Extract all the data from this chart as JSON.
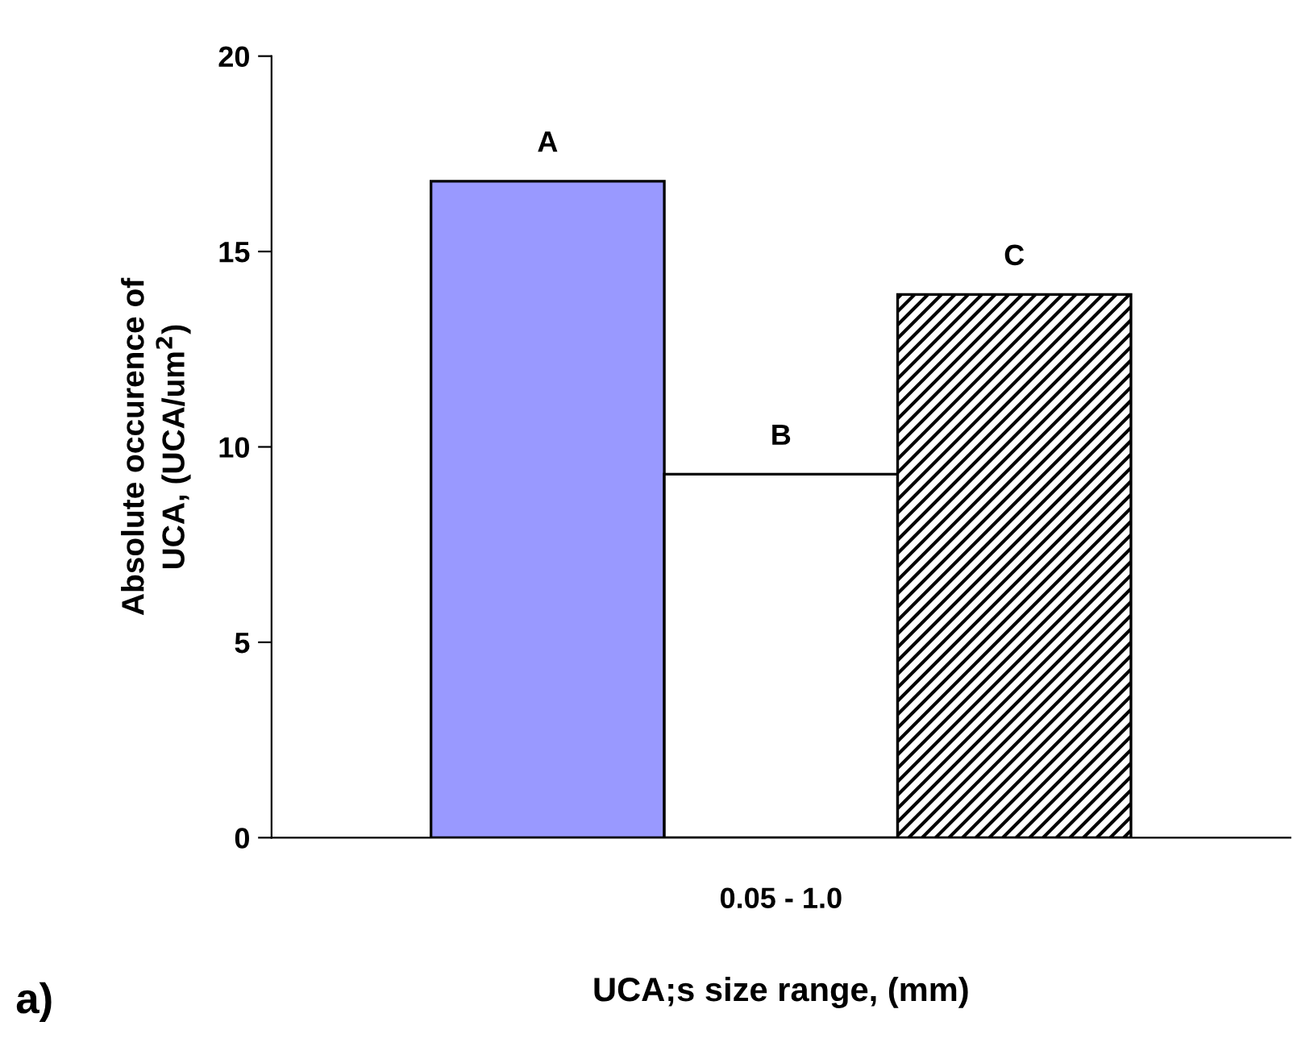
{
  "chart_data": {
    "type": "bar",
    "categories": [
      "0.05 - 1.0"
    ],
    "series": [
      {
        "name": "A",
        "color": "#9999ff",
        "values": [
          16.8
        ]
      },
      {
        "name": "B",
        "color": "#ffffff",
        "values": [
          9.3
        ]
      },
      {
        "name": "C",
        "color": "#000000",
        "values": [
          13.9
        ]
      }
    ],
    "xlabel": "UCA;s size range, (mm)",
    "ylabel": "Absolute occurence of\nUCA, (UCA/um$^{2}$)",
    "annotations": [
      "a)"
    ],
    "ylim": [
      0,
      20
    ],
    "yticks": [
      0,
      5,
      10,
      15,
      20
    ],
    "grid": false,
    "legend": false
  }
}
